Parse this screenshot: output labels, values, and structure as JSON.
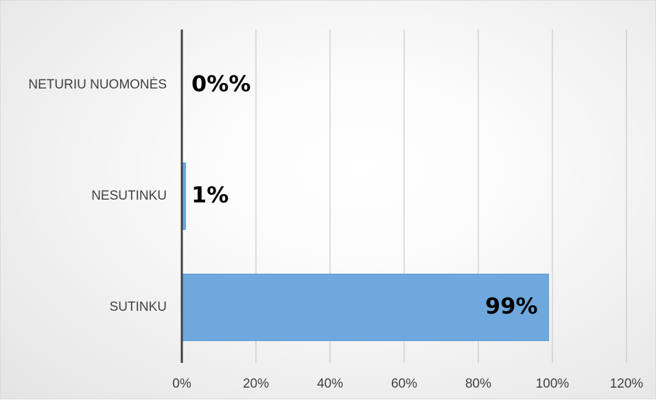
{
  "chart_data": {
    "type": "bar",
    "orientation": "horizontal",
    "categories": [
      "NETURIU NUOMONĖS",
      "NESUTINKU",
      "SUTINKU"
    ],
    "values": [
      0,
      1,
      99
    ],
    "data_labels": [
      "0%%",
      "1%",
      "99%"
    ],
    "xlim": [
      0,
      120
    ],
    "x_ticks": [
      0,
      20,
      40,
      60,
      80,
      100,
      120
    ],
    "x_tick_labels": [
      "0%",
      "20%",
      "40%",
      "60%",
      "80%",
      "100%",
      "120%"
    ],
    "grid": "vertical",
    "legend": "none",
    "bar_color": "#6fa8dc",
    "axis_color": "#404040",
    "grid_color": "#bfbfbf"
  }
}
